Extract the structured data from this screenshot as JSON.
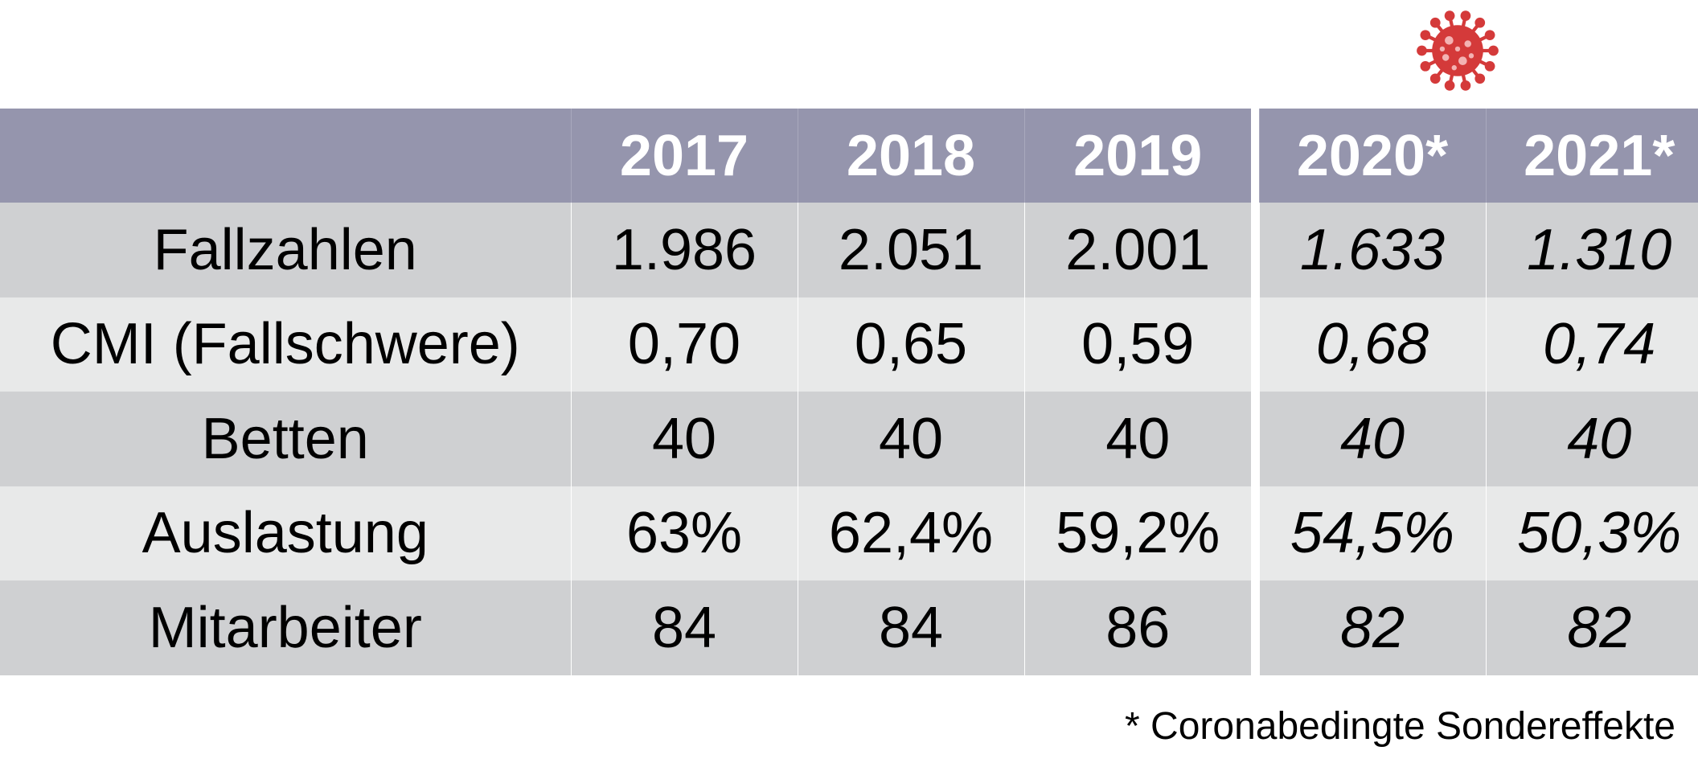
{
  "chart_data": {
    "type": "table",
    "columns": [
      "",
      "2017",
      "2018",
      "2019",
      "2020*",
      "2021*"
    ],
    "rows": [
      {
        "label": "Fallzahlen",
        "values": [
          "1.986",
          "2.051",
          "2.001",
          "1.633",
          "1.310"
        ]
      },
      {
        "label": "CMI (Fallschwere)",
        "values": [
          "0,70",
          "0,65",
          "0,59",
          "0,68",
          "0,74"
        ]
      },
      {
        "label": "Betten",
        "values": [
          "40",
          "40",
          "40",
          "40",
          "40"
        ]
      },
      {
        "label": "Auslastung",
        "values": [
          "63%",
          "62,4%",
          "59,2%",
          "54,5%",
          "50,3%"
        ]
      },
      {
        "label": "Mitarbeiter",
        "values": [
          "84",
          "84",
          "86",
          "82",
          "82"
        ]
      }
    ],
    "footnote": "* Coronabedingte Sondereffekte"
  },
  "colors": {
    "header_bg": "#9595ad",
    "row_dark": "#cfd0d2",
    "row_light": "#e8e9e9",
    "virus": "#d43a3a"
  },
  "icons": {
    "covid": "coronavirus-icon"
  }
}
